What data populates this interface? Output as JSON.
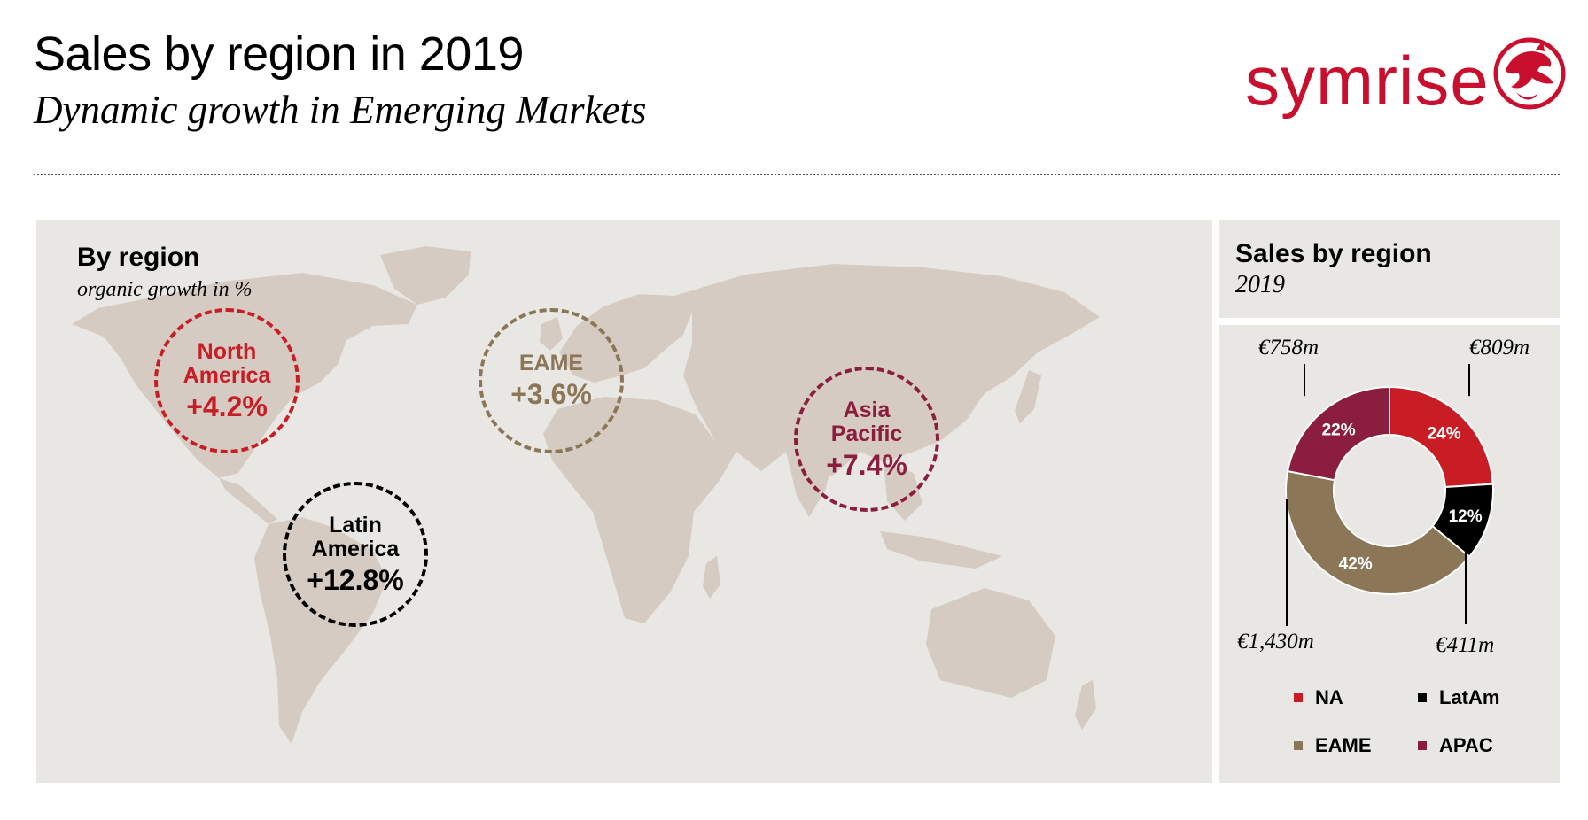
{
  "header": {
    "title": "Sales by region in 2019",
    "subtitle": "Dynamic growth in Emerging Markets"
  },
  "logo": {
    "text": "symrise",
    "icon": "dragon-emblem-icon",
    "color": "#c8102e"
  },
  "map_panel": {
    "title": "By region",
    "subtitle": "organic growth in %",
    "regions": [
      {
        "name": "North America",
        "line1": "North",
        "line2": "America",
        "growth": "+4.2%",
        "color": "#c81d25"
      },
      {
        "name": "EAME",
        "line1": "EAME",
        "growth": "+3.6%",
        "color": "#8b7758"
      },
      {
        "name": "Asia Pacific",
        "line1": "Asia",
        "line2": "Pacific",
        "growth": "+7.4%",
        "color": "#8b1e3f"
      },
      {
        "name": "Latin America",
        "line1": "Latin",
        "line2": "America",
        "growth": "+12.8%",
        "color": "#000000"
      }
    ]
  },
  "sales_panel": {
    "title": "Sales by region",
    "year": "2019"
  },
  "chart_data": {
    "type": "pie",
    "title": "Sales by region",
    "subtitle": "2019",
    "categories": [
      "NA",
      "LatAm",
      "EAME",
      "APAC"
    ],
    "values": [
      24,
      12,
      42,
      22
    ],
    "labels": [
      "24%",
      "12%",
      "42%",
      "22%"
    ],
    "amounts": [
      "€809m",
      "€411m",
      "€1,430m",
      "€758m"
    ],
    "colors": [
      "#c81d25",
      "#000000",
      "#8b7758",
      "#8b1e3f"
    ],
    "legend": [
      "NA",
      "LatAm",
      "EAME",
      "APAC"
    ]
  }
}
